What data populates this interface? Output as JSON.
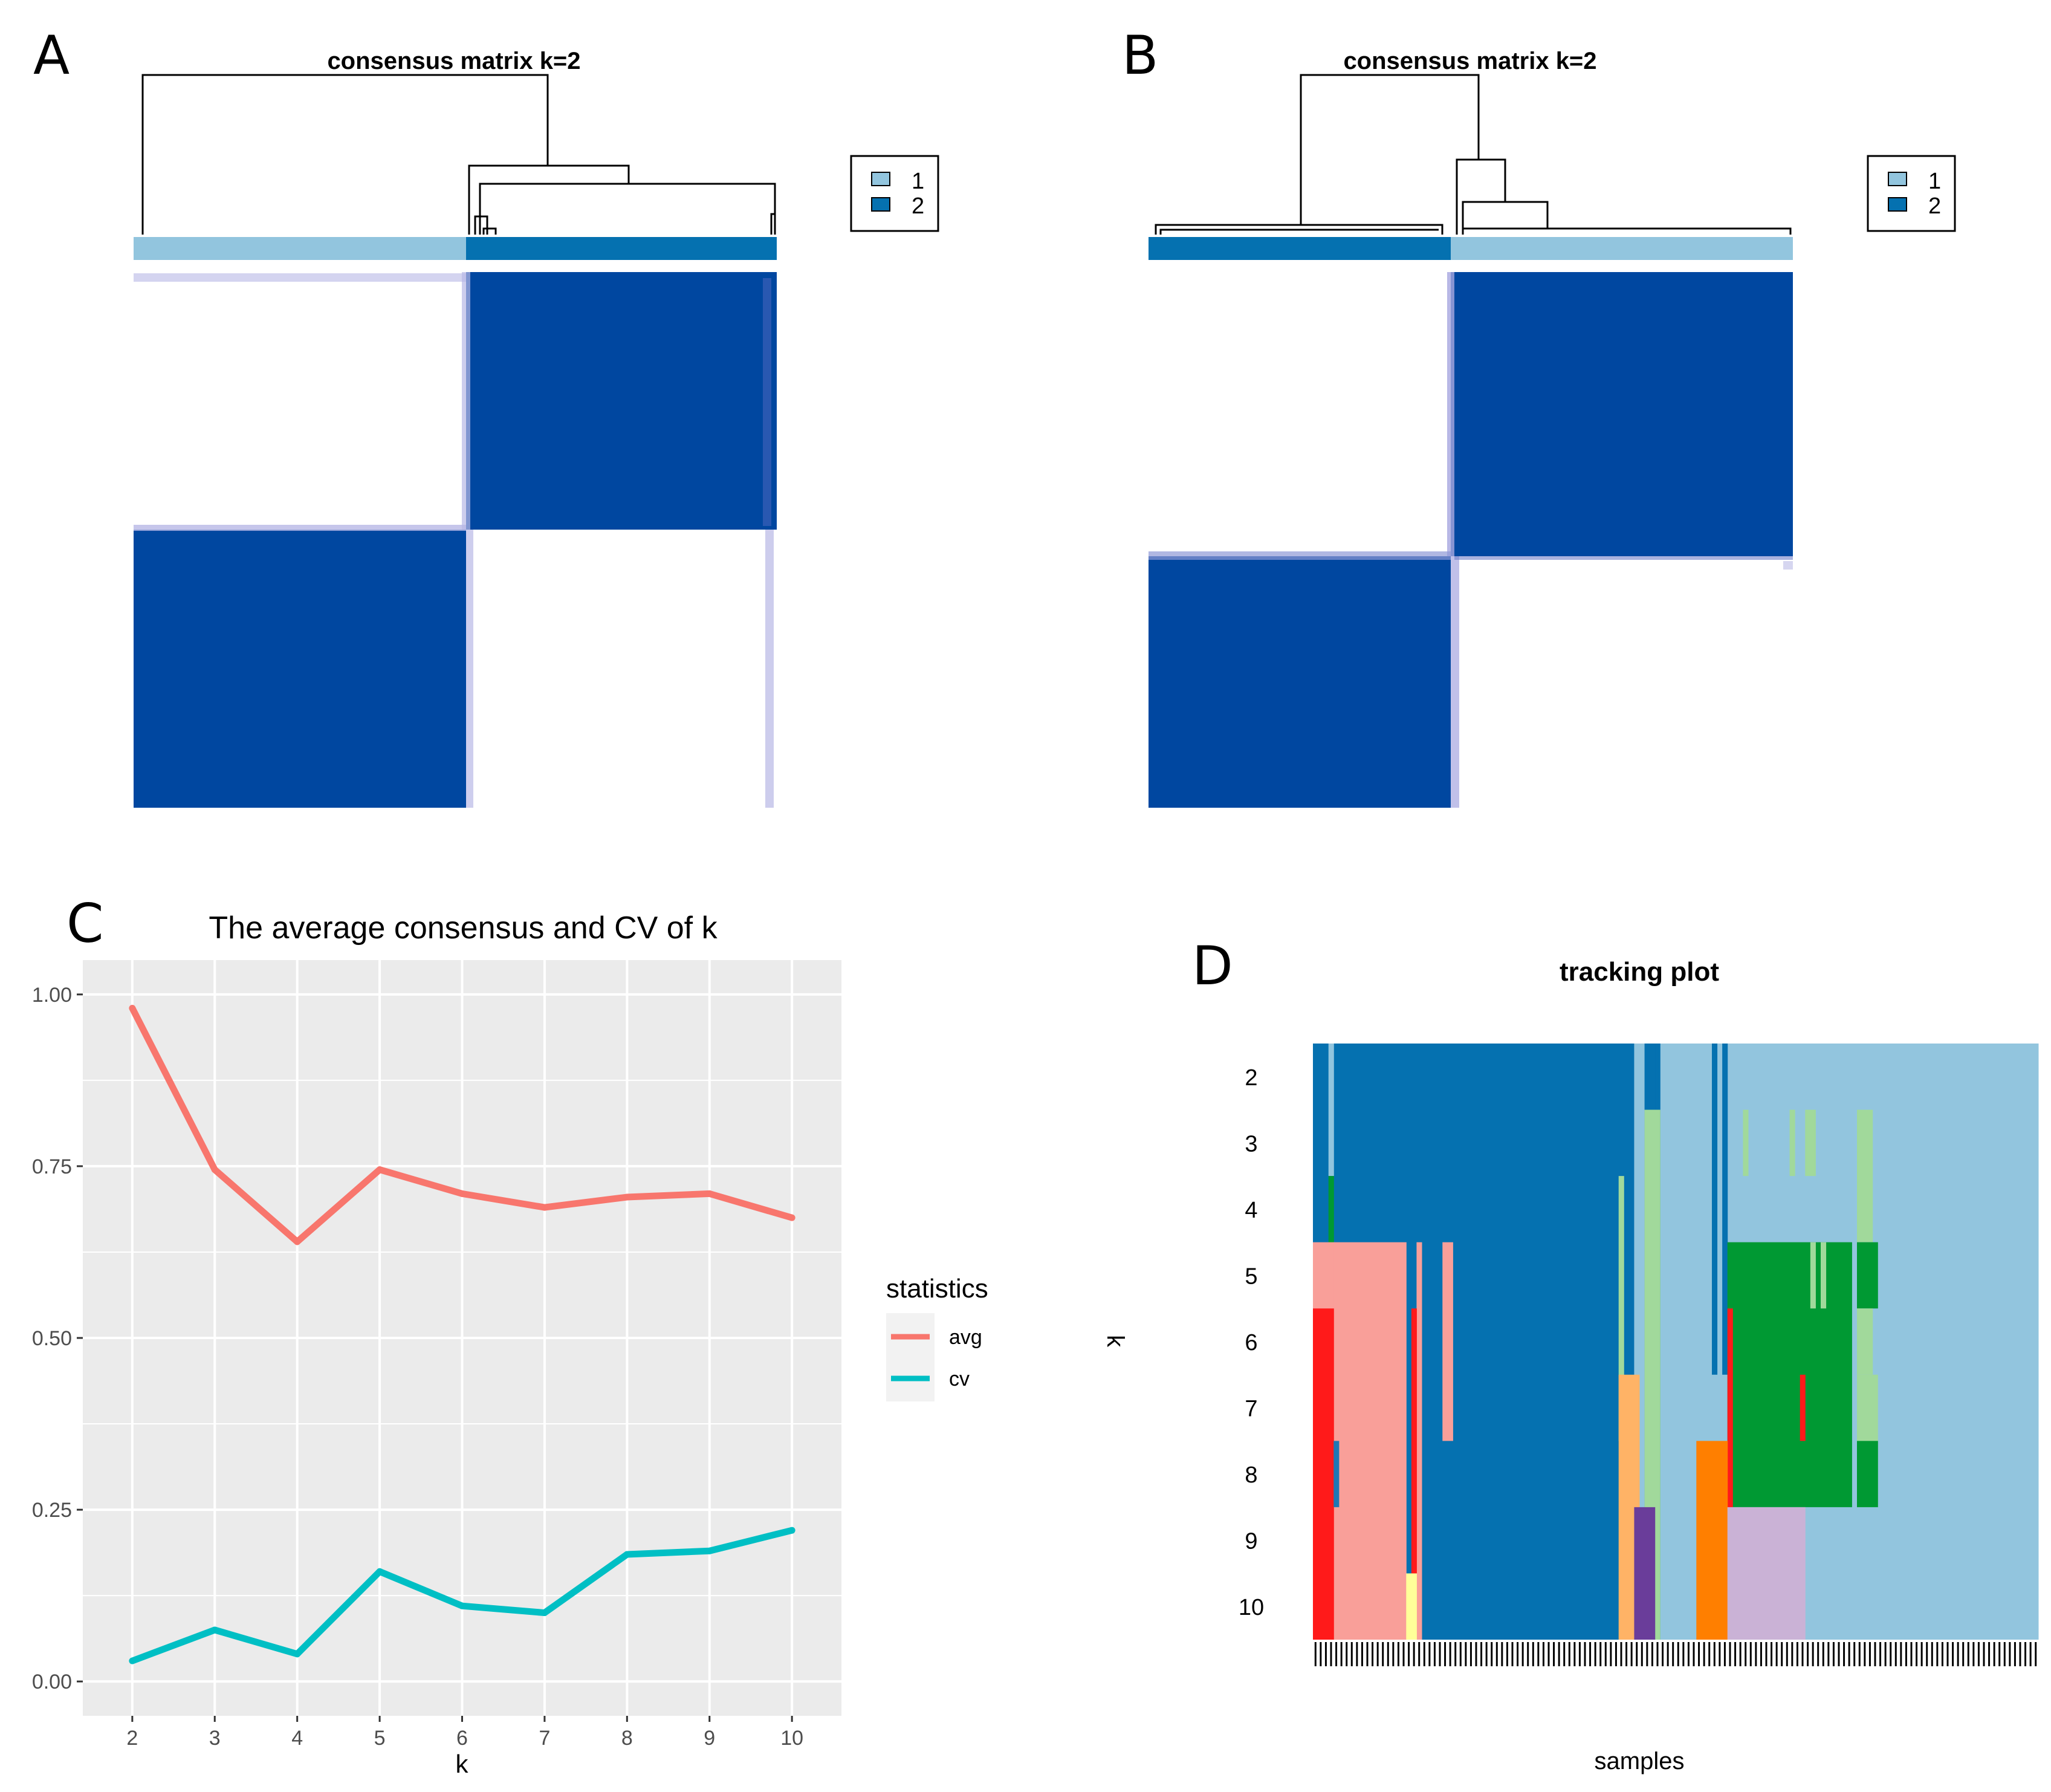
{
  "panels": {
    "A": {
      "letter": "A",
      "title": "consensus matrix k=2",
      "legend": [
        "1",
        "2"
      ]
    },
    "B": {
      "letter": "B",
      "title": "consensus matrix k=2",
      "legend": [
        "1",
        "2"
      ]
    },
    "C": {
      "letter": "C"
    },
    "D": {
      "letter": "D"
    }
  },
  "colors": {
    "cluster1": "#92c5de",
    "cluster2": "#0571b0",
    "consensus_high": "#0047a0",
    "avg": "#f8766d",
    "cv": "#00bfc4",
    "gg_panel": "#ebebeb",
    "tracking": [
      "#0571b0",
      "#92c5de",
      "#a1d99b",
      "#009933",
      "#f99f99",
      "#ff1a1a",
      "#1f78b4",
      "#ffb366",
      "#ff7f00",
      "#cab2d6",
      "#6a3d9a",
      "#ffff99"
    ]
  },
  "chart_data": [
    {
      "panel": "A",
      "type": "heatmap",
      "title": "consensus matrix k=2",
      "k": 2,
      "legend_entries": [
        "1",
        "2"
      ],
      "cluster_order": [
        1,
        2
      ],
      "cluster_proportions": [
        0.52,
        0.48
      ],
      "blocks": [
        {
          "rows": 1,
          "cols": 1,
          "consensus": 0
        },
        {
          "rows": 1,
          "cols": 2,
          "consensus": 1
        },
        {
          "rows": 2,
          "cols": 1,
          "consensus": 1
        },
        {
          "rows": 2,
          "cols": 2,
          "consensus": 0
        }
      ]
    },
    {
      "panel": "B",
      "type": "heatmap",
      "title": "consensus matrix k=2",
      "k": 2,
      "legend_entries": [
        "1",
        "2"
      ],
      "cluster_order": [
        2,
        1
      ],
      "cluster_proportions": [
        0.47,
        0.53
      ],
      "blocks": [
        {
          "rows": 1,
          "cols": 1,
          "consensus": 0
        },
        {
          "rows": 1,
          "cols": 2,
          "consensus": 1
        },
        {
          "rows": 2,
          "cols": 1,
          "consensus": 1
        },
        {
          "rows": 2,
          "cols": 2,
          "consensus": 0
        }
      ]
    },
    {
      "panel": "C",
      "type": "line",
      "title": "The average consensus and CV of k",
      "xlabel": "k",
      "ylabel": "",
      "x": [
        2,
        3,
        4,
        5,
        6,
        7,
        8,
        9,
        10
      ],
      "series": [
        {
          "name": "avg",
          "values": [
            0.98,
            0.745,
            0.64,
            0.745,
            0.71,
            0.69,
            0.705,
            0.71,
            0.675
          ]
        },
        {
          "name": "cv",
          "values": [
            0.03,
            0.075,
            0.04,
            0.16,
            0.11,
            0.1,
            0.185,
            0.19,
            0.22
          ]
        }
      ],
      "xlim": [
        1.4,
        10.6
      ],
      "ylim": [
        -0.05,
        1.05
      ],
      "xticks": [
        "2",
        "3",
        "4",
        "5",
        "6",
        "7",
        "8",
        "9",
        "10"
      ],
      "yticks": [
        "0.00",
        "0.25",
        "0.50",
        "0.75",
        "1.00"
      ],
      "legend_title": "statistics",
      "legend_position": "right",
      "grid": true
    },
    {
      "panel": "D",
      "type": "heatmap",
      "title": "tracking plot",
      "xlabel": "samples",
      "ylabel": "k",
      "k_labels": [
        "2",
        "3",
        "4",
        "5",
        "6",
        "7",
        "8",
        "9",
        "10"
      ],
      "sample_count": 140,
      "sample_ticks": 140
    }
  ]
}
